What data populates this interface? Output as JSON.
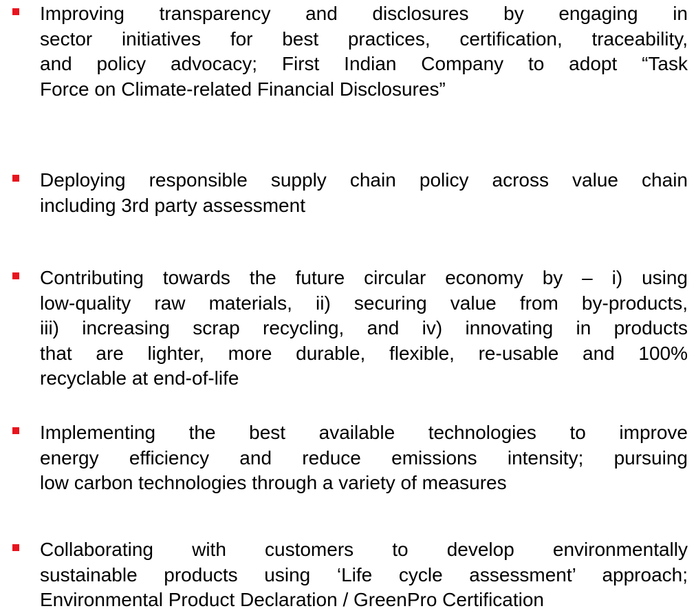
{
  "bullets": [
    {
      "lines": [
        "Improving transparency and disclosures by engaging in",
        "sector initiatives for best practices, certification, traceability,",
        "and policy advocacy; First Indian Company to adopt “Task",
        "Force on Climate-related Financial Disclosures”"
      ]
    },
    {
      "lines": [
        "Deploying responsible supply chain policy across value chain",
        "including 3rd party assessment"
      ]
    },
    {
      "lines": [
        "Contributing towards the future circular economy by – i) using",
        "low-quality raw materials, ii) securing value from by-products,",
        "iii) increasing scrap recycling, and iv) innovating in products",
        "that are lighter, more durable, flexible, re-usable and 100%",
        "recyclable at end-of-life"
      ]
    },
    {
      "lines": [
        "Implementing the best available technologies to improve",
        "energy efficiency and reduce emissions intensity; pursuing",
        "low carbon technologies through a variety of measures"
      ]
    },
    {
      "lines": [
        "Collaborating with customers to develop environmentally",
        "sustainable products using ‘Life cycle assessment’ approach;",
        "Environmental Product Declaration / GreenPro Certification"
      ]
    }
  ]
}
